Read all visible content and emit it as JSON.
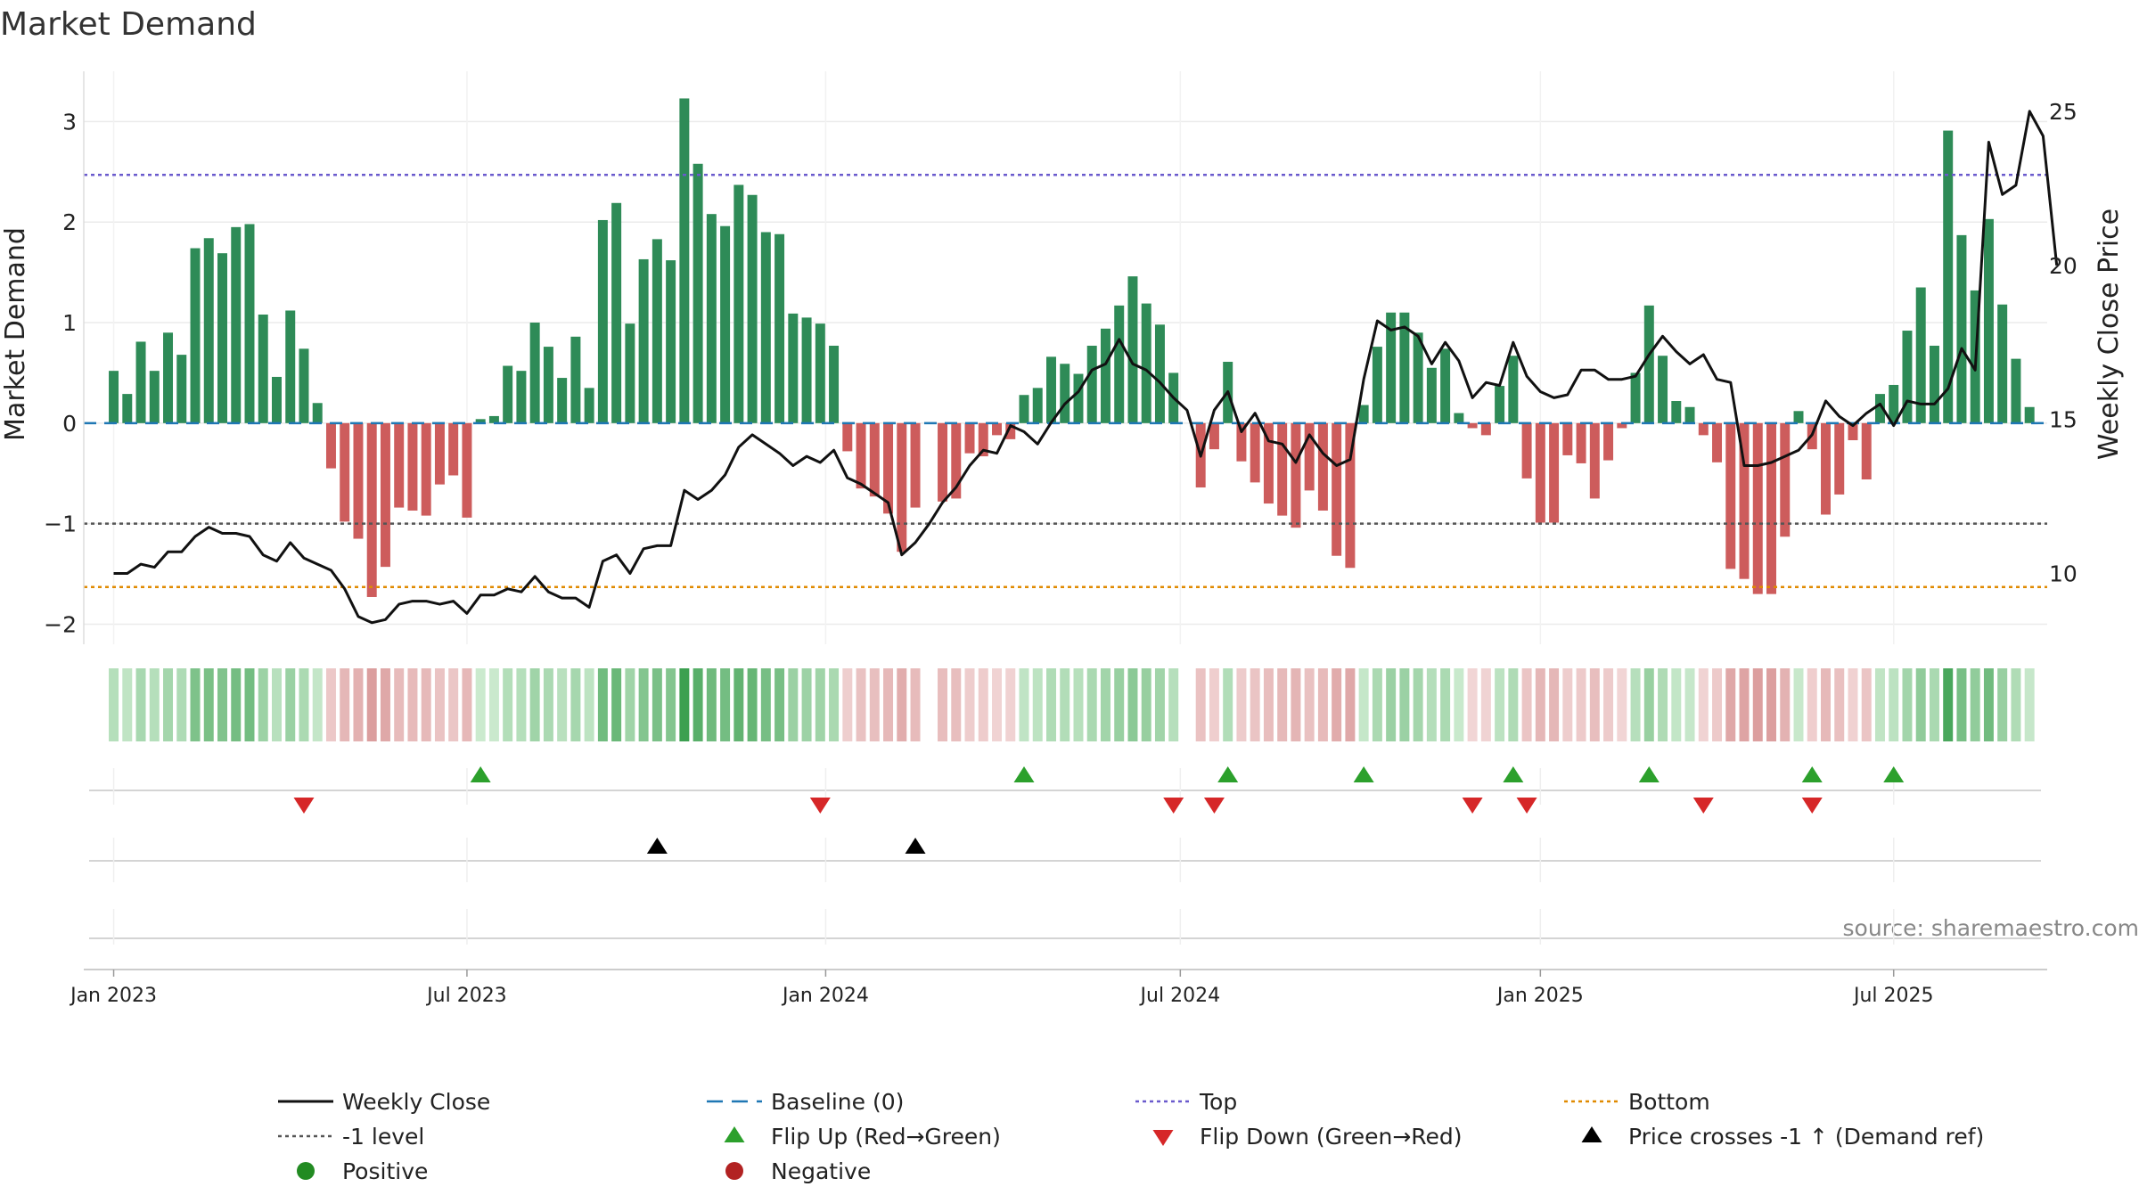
{
  "chart_data": {
    "type": "bar",
    "title": "Market Demand",
    "ylabel": "Market Demand",
    "y2label": "Weekly Close Price",
    "ylim": [
      -2.2,
      3.5
    ],
    "y2lim": [
      7.7,
      26.3
    ],
    "yticks": [
      {
        "v": 3,
        "label": "3"
      },
      {
        "v": 2,
        "label": "2"
      },
      {
        "v": 1,
        "label": "1"
      },
      {
        "v": 0,
        "label": "0"
      },
      {
        "v": -1,
        "label": "−1"
      },
      {
        "v": -2,
        "label": "−2"
      }
    ],
    "y2ticks": [
      {
        "v": 25,
        "label": "25"
      },
      {
        "v": 20,
        "label": "20"
      },
      {
        "v": 15,
        "label": "15"
      },
      {
        "v": 10,
        "label": "10"
      }
    ],
    "xlim_weeks": [
      -2.2,
      142.3
    ],
    "xticks": [
      {
        "week": 0,
        "label": "Jan 2023"
      },
      {
        "week": 26,
        "label": "Jul 2023"
      },
      {
        "week": 52.4,
        "label": "Jan 2024"
      },
      {
        "week": 78.5,
        "label": "Jul 2024"
      },
      {
        "week": 105,
        "label": "Jan 2025"
      },
      {
        "week": 131,
        "label": "Jul 2025"
      }
    ],
    "levels": {
      "baseline": 0,
      "top": 2.47,
      "minus_one": -1.0,
      "bottom": -1.63
    },
    "series": [
      {
        "name": "Market Demand",
        "values": [
          0.52,
          0.29,
          0.81,
          0.52,
          0.9,
          0.68,
          1.74,
          1.84,
          1.69,
          1.95,
          1.98,
          1.08,
          0.46,
          1.12,
          0.74,
          0.2,
          -0.45,
          -0.98,
          -1.15,
          -1.73,
          -1.43,
          -0.84,
          -0.87,
          -0.92,
          -0.61,
          -0.52,
          -0.94,
          0.04,
          0.07,
          0.57,
          0.52,
          1.0,
          0.76,
          0.45,
          0.86,
          0.35,
          2.02,
          2.19,
          0.99,
          1.63,
          1.83,
          1.62,
          3.23,
          2.58,
          2.08,
          1.96,
          2.37,
          2.27,
          1.9,
          1.88,
          1.09,
          1.05,
          0.99,
          0.77,
          -0.28,
          -0.65,
          -0.73,
          -0.9,
          -1.28,
          -0.84,
          0.0,
          -0.78,
          -0.75,
          -0.3,
          -0.33,
          -0.12,
          -0.16,
          0.28,
          0.35,
          0.66,
          0.59,
          0.49,
          0.77,
          0.94,
          1.17,
          1.46,
          1.19,
          0.98,
          0.5,
          0.0,
          -0.64,
          -0.26,
          0.61,
          -0.38,
          -0.59,
          -0.8,
          -0.92,
          -1.04,
          -0.67,
          -0.87,
          -1.32,
          -1.44,
          0.18,
          0.76,
          1.1,
          1.1,
          0.9,
          0.55,
          0.74,
          0.1,
          -0.05,
          -0.12,
          0.37,
          0.67,
          -0.55,
          -0.99,
          -0.99,
          -0.32,
          -0.4,
          -0.75,
          -0.37,
          -0.05,
          0.5,
          1.17,
          0.67,
          0.22,
          0.16,
          -0.12,
          -0.39,
          -1.45,
          -1.55,
          -1.7,
          -1.7,
          -1.13,
          0.12,
          -0.26,
          -0.91,
          -0.71,
          -0.17,
          -0.56,
          0.29,
          0.38,
          0.92,
          1.35,
          0.77,
          2.91,
          1.87,
          1.32,
          2.03,
          1.18,
          0.64,
          0.16
        ]
      },
      {
        "name": "Weekly Close",
        "values": [
          10.0,
          10.0,
          10.3,
          10.2,
          10.7,
          10.7,
          11.2,
          11.5,
          11.3,
          11.3,
          11.2,
          10.6,
          10.4,
          11.0,
          10.5,
          10.3,
          10.1,
          9.5,
          8.6,
          8.4,
          8.5,
          9.0,
          9.1,
          9.1,
          9.0,
          9.1,
          8.7,
          9.3,
          9.3,
          9.5,
          9.4,
          9.9,
          9.4,
          9.2,
          9.2,
          8.9,
          10.4,
          10.6,
          10.0,
          10.8,
          10.9,
          10.9,
          12.7,
          12.4,
          12.7,
          13.2,
          14.1,
          14.5,
          14.2,
          13.9,
          13.5,
          13.8,
          13.6,
          14.0,
          13.1,
          12.9,
          12.6,
          12.3,
          10.6,
          11.0,
          11.6,
          12.3,
          12.8,
          13.5,
          14.0,
          13.9,
          14.8,
          14.6,
          14.2,
          14.9,
          15.5,
          15.9,
          16.6,
          16.8,
          17.6,
          16.8,
          16.6,
          16.2,
          15.7,
          15.3,
          13.8,
          15.3,
          15.9,
          14.6,
          15.2,
          14.3,
          14.2,
          13.6,
          14.5,
          13.9,
          13.5,
          13.7,
          16.3,
          18.2,
          17.9,
          18.0,
          17.7,
          16.8,
          17.5,
          16.9,
          15.7,
          16.2,
          16.1,
          17.5,
          16.4,
          15.9,
          15.7,
          15.8,
          16.6,
          16.6,
          16.3,
          16.3,
          16.4,
          17.1,
          17.7,
          17.2,
          16.8,
          17.1,
          16.3,
          16.2,
          13.5,
          13.5,
          13.6,
          13.8,
          14.0,
          14.5,
          15.6,
          15.1,
          14.8,
          15.2,
          15.5,
          14.8,
          15.6,
          15.5,
          15.5,
          16.0,
          17.3,
          16.6,
          24.0,
          22.3,
          22.6,
          25.0,
          24.2,
          20.0
        ]
      }
    ],
    "flip_up_weeks": [
      27,
      67,
      82,
      92,
      103,
      113,
      125,
      131
    ],
    "flip_down_weeks": [
      14,
      52,
      78,
      81,
      100,
      104,
      117,
      125
    ],
    "price_cross_weeks": [
      40,
      59
    ],
    "source": "source: sharemaestro.com",
    "legend": {
      "position": "bottom",
      "items": [
        {
          "label": "Weekly Close",
          "symbol": "line",
          "color": "#111111"
        },
        {
          "label": "Baseline (0)",
          "symbol": "dash",
          "color": "#1f77b4"
        },
        {
          "label": "Top",
          "symbol": "dot",
          "color": "#6a5acd"
        },
        {
          "label": "Bottom",
          "symbol": "dot",
          "color": "#e08a00"
        },
        {
          "label": "-1 level",
          "symbol": "dot",
          "color": "#555555"
        },
        {
          "label": "Flip Up (Red→Green)",
          "symbol": "tri-up",
          "color": "#2ca02c"
        },
        {
          "label": "Flip Down (Green→Red)",
          "symbol": "tri-down",
          "color": "#d62728"
        },
        {
          "label": "Price crosses -1 ↑ (Demand ref)",
          "symbol": "tri-up",
          "color": "#000000"
        },
        {
          "label": "Positive",
          "symbol": "circle",
          "color": "#228b22"
        },
        {
          "label": "Negative",
          "symbol": "circle",
          "color": "#b22222"
        }
      ]
    }
  },
  "colors": {
    "positive_bar": "#2e8b57",
    "negative_bar": "#cd5c5c",
    "price_line": "#111111",
    "baseline": "#1f77b4",
    "top": "#6a5acd",
    "bottom": "#e08a00",
    "minus_one": "#555555",
    "flip_up": "#2ca02c",
    "flip_down": "#d62728",
    "cross": "#000000",
    "axis_text": "#222222",
    "source_text": "#888888"
  }
}
